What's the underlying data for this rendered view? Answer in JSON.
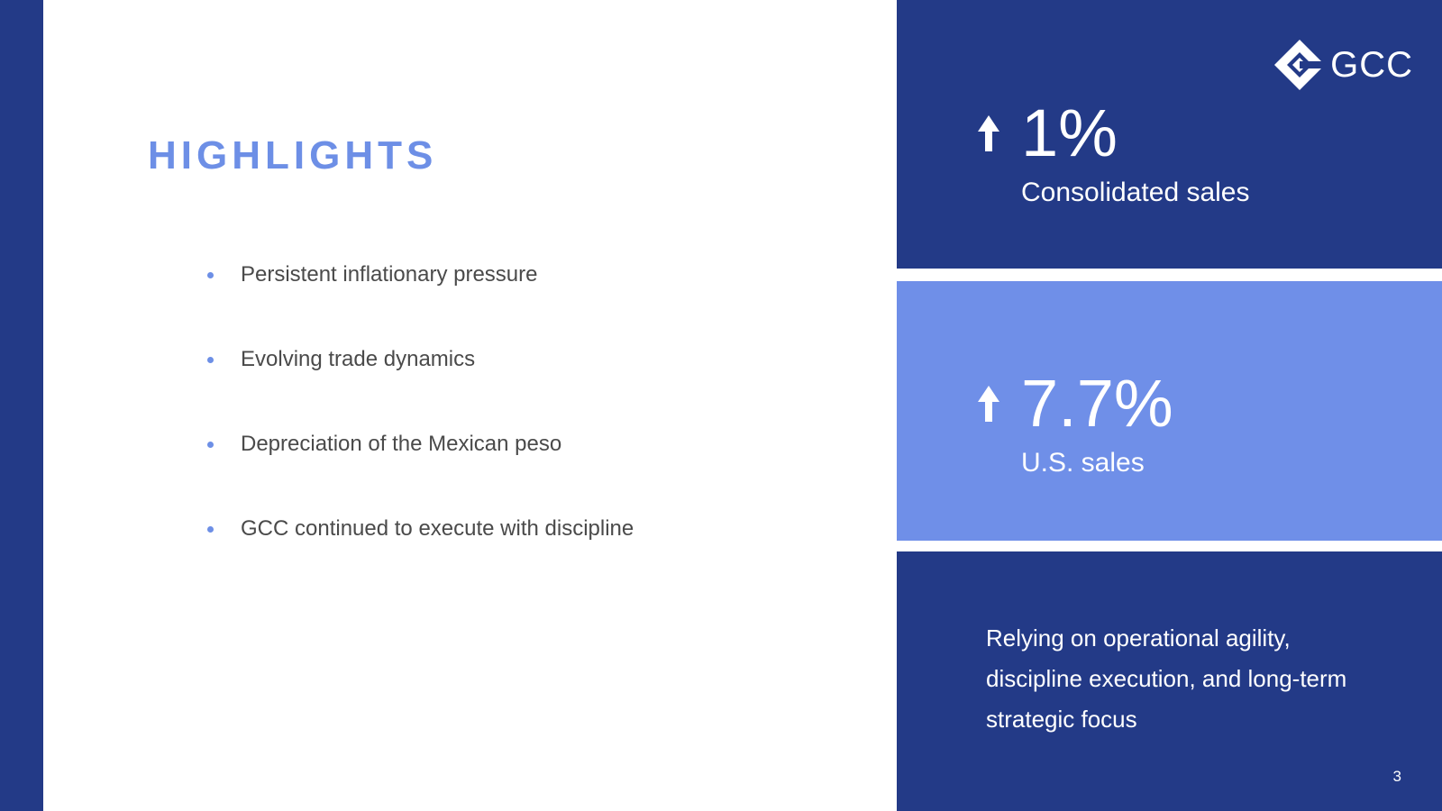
{
  "slide": {
    "title": "HIGHLIGHTS",
    "bullets": [
      "Persistent inflationary pressure",
      "Evolving trade dynamics",
      "Depreciation of the Mexican peso",
      "GCC continued to execute with discipline"
    ],
    "logo_text": "GCC",
    "stats": [
      {
        "value": "1%",
        "label": "Consolidated sales",
        "direction": "up-arrow-icon"
      },
      {
        "value": "7.7%",
        "label": "U.S. sales",
        "direction": "up-arrow-icon"
      }
    ],
    "quote": "Relying on operational agility, discipline execution, and long-term strategic focus",
    "page_number": "3",
    "colors": {
      "navy": "#233a87",
      "light_blue": "#6f8fe8",
      "title_blue": "#6d8fe6",
      "text_gray": "#4a4a4a"
    }
  }
}
